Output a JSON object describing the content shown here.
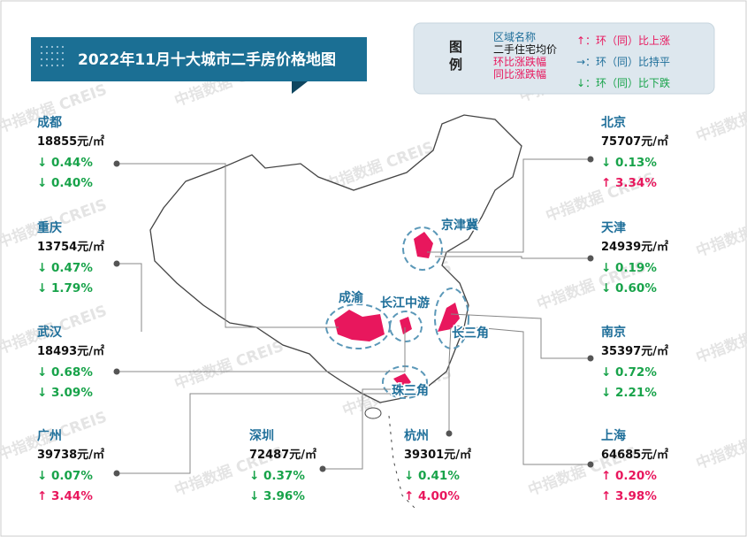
{
  "header": {
    "title": "2022年11月十大城市二手房价格地图"
  },
  "legend": {
    "title": "图例",
    "items": [
      "区域名称",
      "二手住宅均价",
      "环比涨跌幅",
      "同比涨跌幅"
    ],
    "symbols": [
      "↑：环（同）比上涨",
      "→：环（同）比持平",
      "↓：环（同）比下跌"
    ]
  },
  "watermark": "中指数据 CREIS",
  "regions": [
    "京津冀",
    "成渝",
    "长江中游",
    "长三角",
    "珠三角"
  ],
  "cities": [
    {
      "name": "成都",
      "price": "18855元/㎡",
      "mom": "↓ 0.44%",
      "yoy": "↓ 0.40%"
    },
    {
      "name": "重庆",
      "price": "13754元/㎡",
      "mom": "↓ 0.47%",
      "yoy": "↓ 1.79%"
    },
    {
      "name": "武汉",
      "price": "18493元/㎡",
      "mom": "↓ 0.68%",
      "yoy": "↓ 3.09%"
    },
    {
      "name": "广州",
      "price": "39738元/㎡",
      "mom": "↓ 0.07%",
      "yoy": "↑ 3.44%"
    },
    {
      "name": "深圳",
      "price": "72487元/㎡",
      "mom": "↓ 0.37%",
      "yoy": "↓ 3.96%"
    },
    {
      "name": "杭州",
      "price": "39301元/㎡",
      "mom": "↓ 0.41%",
      "yoy": "↑ 4.00%"
    },
    {
      "name": "北京",
      "price": "75707元/㎡",
      "mom": "↓ 0.13%",
      "yoy": "↑ 3.34%"
    },
    {
      "name": "天津",
      "price": "24939元/㎡",
      "mom": "↓ 0.19%",
      "yoy": "↓ 0.60%"
    },
    {
      "name": "南京",
      "price": "35397元/㎡",
      "mom": "↓ 0.72%",
      "yoy": "↓ 2.21%"
    },
    {
      "name": "上海",
      "price": "64685元/㎡",
      "mom": "↑ 0.20%",
      "yoy": "↑ 3.98%"
    }
  ]
}
